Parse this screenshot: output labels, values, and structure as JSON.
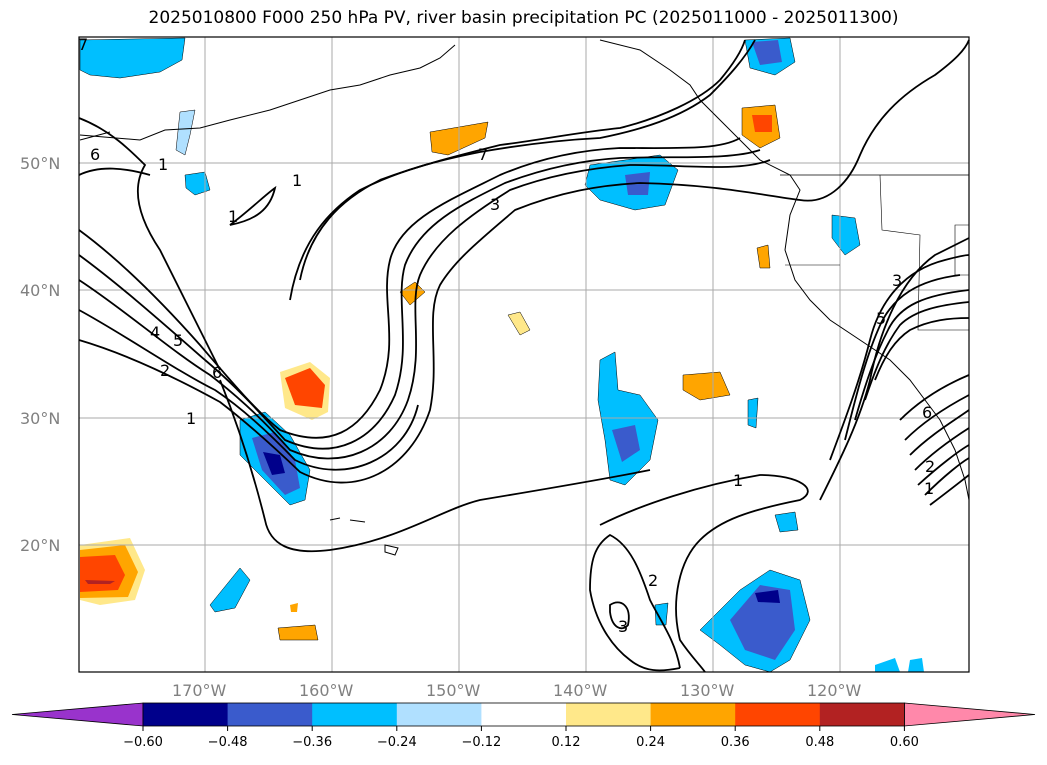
{
  "title": "2025010800 F000 250 hPa PV, river basin precipitation PC (2025011000 - 2025011300)",
  "lat_labels": [
    "50°N",
    "40°N",
    "30°N",
    "20°N"
  ],
  "lon_labels": [
    "170°W",
    "160°W",
    "150°W",
    "140°W",
    "130°W",
    "120°W"
  ],
  "contour_labels": [
    "1",
    "1",
    "1",
    "6",
    "7",
    "7",
    "3",
    "4",
    "5",
    "2",
    "6",
    "1",
    "3",
    "5",
    "6",
    "2",
    "1",
    "1",
    "2",
    "3"
  ],
  "colorbar": {
    "ticks": [
      "−0.60",
      "−0.48",
      "−0.36",
      "−0.24",
      "−0.12",
      "0.12",
      "0.24",
      "0.36",
      "0.48",
      "0.60"
    ],
    "colors": [
      "#9933cc",
      "#00008b",
      "#3a5bcc",
      "#00bfff",
      "#b0e0ff",
      "#ffffff",
      "#ffe88a",
      "#ffa500",
      "#ff4500",
      "#b22222",
      "#ff88aa"
    ]
  },
  "colors": {
    "grid": "#aaaaaa",
    "coast": "#000000",
    "pv_contour": "#000000"
  }
}
